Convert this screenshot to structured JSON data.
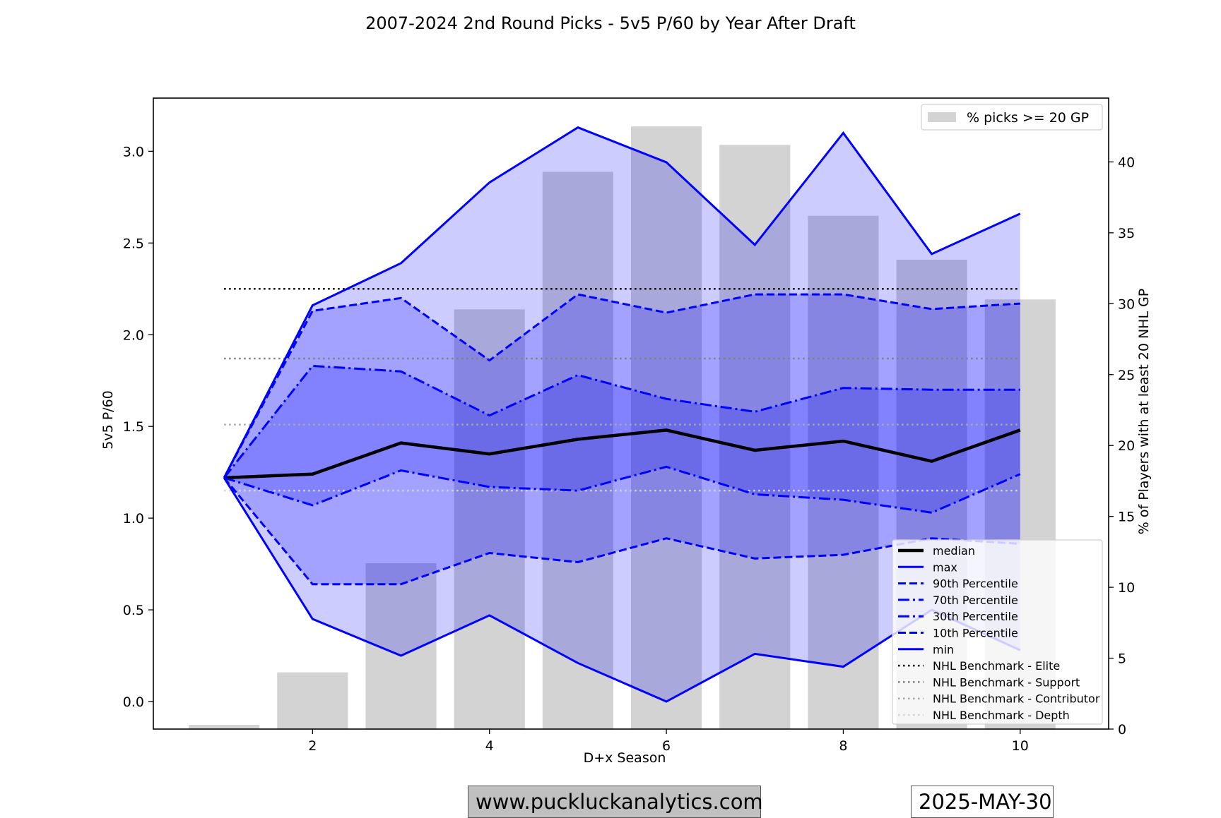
{
  "chart_data": {
    "type": "line",
    "title": "2007-2024 2nd Round Picks - 5v5 P/60 by Year After Draft",
    "xlabel": "D+x Season",
    "ylabel": "5v5 P/60",
    "y2label": "% of Players with at least 20 NHL GP",
    "xlim": [
      0.2,
      11.0
    ],
    "ylim": [
      -0.15,
      3.29
    ],
    "y2lim": [
      0,
      44.5
    ],
    "x_ticks": [
      2,
      4,
      6,
      8,
      10
    ],
    "y_ticks": [
      0.0,
      0.5,
      1.0,
      1.5,
      2.0,
      2.5,
      3.0
    ],
    "y2_ticks": [
      0,
      5,
      10,
      15,
      20,
      25,
      30,
      35,
      40
    ],
    "x": [
      1,
      2,
      3,
      4,
      5,
      6,
      7,
      8,
      9,
      10
    ],
    "series": [
      {
        "name": "median",
        "values": [
          1.22,
          1.24,
          1.41,
          1.35,
          1.43,
          1.48,
          1.37,
          1.42,
          1.31,
          1.48
        ],
        "color": "#000000",
        "dash": "solid",
        "width": 4.5
      },
      {
        "name": "max",
        "values": [
          1.22,
          2.16,
          2.39,
          2.83,
          3.13,
          2.94,
          2.49,
          3.1,
          2.44,
          2.66
        ],
        "color": "#0000ff",
        "dash": "solid",
        "width": 3
      },
      {
        "name": "90th Percentile",
        "values": [
          1.22,
          2.13,
          2.2,
          1.86,
          2.22,
          2.12,
          2.22,
          2.22,
          2.14,
          2.17
        ],
        "color": "#0000ff",
        "dash": "dashed",
        "width": 3
      },
      {
        "name": "70th Percentile",
        "values": [
          1.22,
          1.83,
          1.8,
          1.56,
          1.78,
          1.65,
          1.58,
          1.71,
          1.7,
          1.7
        ],
        "color": "#0000ff",
        "dash": "dashdot",
        "width": 3
      },
      {
        "name": "30th Percentile",
        "values": [
          1.22,
          1.07,
          1.26,
          1.17,
          1.15,
          1.28,
          1.13,
          1.1,
          1.03,
          1.24
        ],
        "color": "#0000ff",
        "dash": "dashdot",
        "width": 3
      },
      {
        "name": "10th Percentile",
        "values": [
          1.22,
          0.64,
          0.64,
          0.81,
          0.76,
          0.89,
          0.78,
          0.8,
          0.89,
          0.86
        ],
        "color": "#0000ff",
        "dash": "dashed",
        "width": 3
      },
      {
        "name": "min",
        "values": [
          1.22,
          0.45,
          0.25,
          0.47,
          0.21,
          0.0,
          0.26,
          0.19,
          0.5,
          0.28
        ],
        "color": "#0000ff",
        "dash": "solid",
        "width": 3
      }
    ],
    "benchmarks": [
      {
        "name": "NHL Benchmark - Elite",
        "value": 2.25,
        "color": "#000000"
      },
      {
        "name": "NHL Benchmark - Support",
        "value": 1.87,
        "color": "#808080"
      },
      {
        "name": "NHL Benchmark - Contributor",
        "value": 1.51,
        "color": "#a9a9a9"
      },
      {
        "name": "NHL Benchmark - Depth",
        "value": 1.15,
        "color": "#d3d3d3"
      }
    ],
    "bars": {
      "name": "% picks >= 20 GP",
      "axis": "right",
      "x": [
        1,
        2,
        3,
        4,
        5,
        6,
        7,
        8,
        9,
        10
      ],
      "values": [
        0.3,
        4.0,
        11.7,
        29.6,
        39.3,
        42.5,
        41.2,
        36.2,
        33.1,
        30.3
      ],
      "color": "#d3d3d3"
    },
    "bands": [
      {
        "between": [
          "min",
          "max"
        ],
        "color": "#0000ff",
        "opacity": 0.2
      },
      {
        "between": [
          "10th Percentile",
          "90th Percentile"
        ],
        "color": "#0000ff",
        "opacity": 0.2
      },
      {
        "between": [
          "30th Percentile",
          "70th Percentile"
        ],
        "color": "#0000ff",
        "opacity": 0.2
      }
    ],
    "legend_main_placement": "bottom-right",
    "legend_bars_placement": "top-right",
    "grid": false
  },
  "footer": {
    "website": "www.puckluckanalytics.com",
    "date": "2025-MAY-30"
  }
}
